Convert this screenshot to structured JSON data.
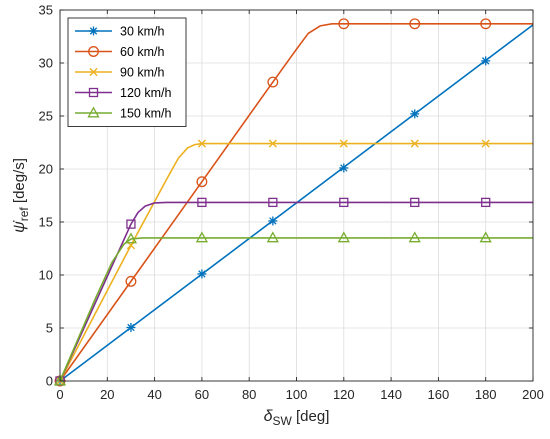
{
  "chart_data": {
    "type": "line",
    "x_label": {
      "symbol": "δ",
      "sub": "SW",
      "unit": " [deg]"
    },
    "y_label": {
      "symbol": "ψ̇",
      "sub": "ref",
      "unit": " [deg/s]"
    },
    "xlim": [
      0,
      200
    ],
    "ylim": [
      0,
      35
    ],
    "x_ticks": [
      0,
      20,
      40,
      60,
      80,
      100,
      120,
      140,
      160,
      180,
      200
    ],
    "y_ticks": [
      0,
      5,
      10,
      15,
      20,
      25,
      30,
      35
    ],
    "grid": true,
    "legend_position": "top-left",
    "series": [
      {
        "name": "30 km/h",
        "color": "#0072BD",
        "marker": "asterisk",
        "curve": [
          [
            0,
            0
          ],
          [
            200,
            33.6
          ]
        ],
        "markers": [
          [
            0,
            0
          ],
          [
            30,
            5.05
          ],
          [
            60,
            10.1
          ],
          [
            90,
            15.1
          ],
          [
            120,
            20.1
          ],
          [
            150,
            25.2
          ],
          [
            180,
            30.2
          ]
        ]
      },
      {
        "name": "60 km/h",
        "color": "#D95319",
        "marker": "circle",
        "curve": [
          [
            0,
            0
          ],
          [
            30,
            9.4
          ],
          [
            60,
            18.8
          ],
          [
            90,
            28.2
          ],
          [
            100,
            31.3
          ],
          [
            105,
            32.8
          ],
          [
            110,
            33.5
          ],
          [
            115,
            33.7
          ],
          [
            200,
            33.7
          ]
        ],
        "markers": [
          [
            0,
            0
          ],
          [
            30,
            9.4
          ],
          [
            60,
            18.8
          ],
          [
            90,
            28.2
          ],
          [
            120,
            33.7
          ],
          [
            150,
            33.7
          ],
          [
            180,
            33.7
          ]
        ]
      },
      {
        "name": "90 km/h",
        "color": "#EDB120",
        "marker": "x",
        "curve": [
          [
            0,
            0
          ],
          [
            30,
            12.8
          ],
          [
            45,
            19.0
          ],
          [
            50,
            21.0
          ],
          [
            54,
            22.0
          ],
          [
            57,
            22.3
          ],
          [
            60,
            22.4
          ],
          [
            200,
            22.4
          ]
        ],
        "markers": [
          [
            0,
            0
          ],
          [
            30,
            12.8
          ],
          [
            60,
            22.4
          ],
          [
            90,
            22.4
          ],
          [
            120,
            22.4
          ],
          [
            150,
            22.4
          ],
          [
            180,
            22.4
          ]
        ]
      },
      {
        "name": "120 km/h",
        "color": "#7E2F8E",
        "marker": "square",
        "curve": [
          [
            0,
            0
          ],
          [
            30,
            14.8
          ],
          [
            33,
            15.9
          ],
          [
            36,
            16.5
          ],
          [
            40,
            16.8
          ],
          [
            45,
            16.85
          ],
          [
            200,
            16.85
          ]
        ],
        "markers": [
          [
            0,
            0
          ],
          [
            30,
            14.8
          ],
          [
            60,
            16.85
          ],
          [
            90,
            16.85
          ],
          [
            120,
            16.85
          ],
          [
            150,
            16.85
          ],
          [
            180,
            16.85
          ]
        ]
      },
      {
        "name": "150 km/h",
        "color": "#77AC30",
        "marker": "triangle",
        "curve": [
          [
            0,
            0
          ],
          [
            15,
            7.8
          ],
          [
            22,
            11.2
          ],
          [
            27,
            12.9
          ],
          [
            30,
            13.4
          ],
          [
            35,
            13.5
          ],
          [
            200,
            13.5
          ]
        ],
        "markers": [
          [
            0,
            0
          ],
          [
            30,
            13.4
          ],
          [
            60,
            13.5
          ],
          [
            90,
            13.5
          ],
          [
            120,
            13.5
          ],
          [
            150,
            13.5
          ],
          [
            180,
            13.5
          ]
        ]
      }
    ]
  }
}
